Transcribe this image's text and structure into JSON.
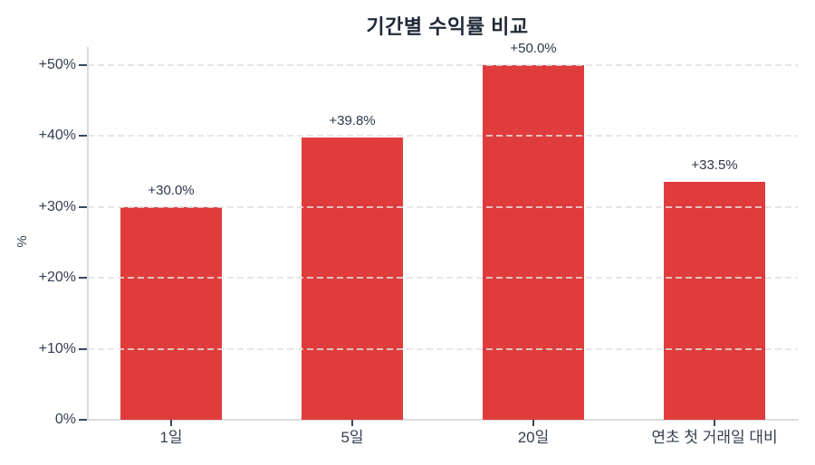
{
  "chart_data": {
    "type": "bar",
    "title": "기간별 수익률 비교",
    "ylabel": "%",
    "xlabel": "",
    "categories": [
      "1일",
      "5일",
      "20일",
      "연초 첫 거래일 대비"
    ],
    "values": [
      30.0,
      39.8,
      50.0,
      33.5
    ],
    "value_labels": [
      "+30.0%",
      "+39.8%",
      "+50.0%",
      "+33.5%"
    ],
    "yticks": [
      0,
      10,
      20,
      30,
      40,
      50
    ],
    "ytick_labels": [
      "0%",
      "+10%",
      "+20%",
      "+30%",
      "+40%",
      "+50%"
    ],
    "ylim": [
      0,
      52.5
    ],
    "grid": "horizontal-dashed",
    "legend": "none",
    "colors": {
      "bar": "#e03c3c",
      "grid": "#e0e0e0",
      "axis_line": "#d8dbdf",
      "tick_mark": "#3a465c",
      "tick_label": "#333e52",
      "title": "#1f2937",
      "background": "#ffffff"
    }
  }
}
